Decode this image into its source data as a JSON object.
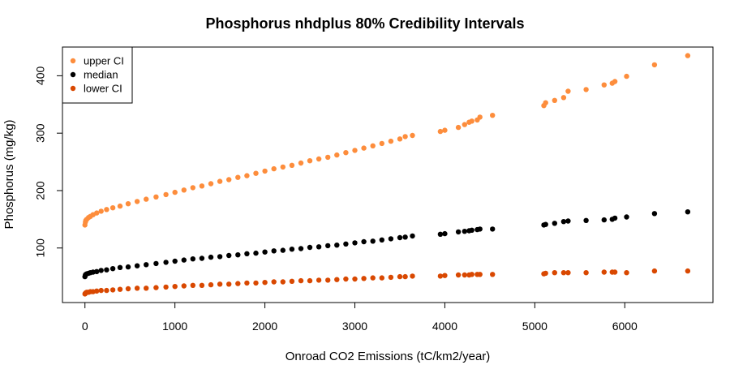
{
  "chart_data": {
    "type": "scatter",
    "title": "Phosphorus nhdplus 80% Credibility Intervals",
    "xlabel": "Onroad CO2 Emissions (tC/km2/year)",
    "ylabel": "Phosphorus (mg/kg)",
    "xlim": [
      -250,
      6980
    ],
    "ylim": [
      5,
      450
    ],
    "xticks": [
      0,
      1000,
      2000,
      3000,
      4000,
      5000,
      6000
    ],
    "yticks": [
      100,
      200,
      300,
      400
    ],
    "grid": false,
    "legend_position": "top-left",
    "series": [
      {
        "name": "upper CI",
        "color": "#FD8D3C",
        "points": [
          [
            0,
            140
          ],
          [
            5,
            145
          ],
          [
            10,
            148
          ],
          [
            20,
            150
          ],
          [
            40,
            153
          ],
          [
            60,
            155
          ],
          [
            90,
            158
          ],
          [
            130,
            161
          ],
          [
            180,
            164
          ],
          [
            240,
            167
          ],
          [
            310,
            170
          ],
          [
            390,
            173
          ],
          [
            480,
            177
          ],
          [
            580,
            181
          ],
          [
            680,
            185
          ],
          [
            790,
            189
          ],
          [
            900,
            193
          ],
          [
            1000,
            197
          ],
          [
            1100,
            201
          ],
          [
            1200,
            205
          ],
          [
            1300,
            208
          ],
          [
            1400,
            212
          ],
          [
            1500,
            216
          ],
          [
            1600,
            219
          ],
          [
            1700,
            223
          ],
          [
            1800,
            226
          ],
          [
            1900,
            230
          ],
          [
            2000,
            234
          ],
          [
            2100,
            238
          ],
          [
            2200,
            241
          ],
          [
            2300,
            244
          ],
          [
            2400,
            248
          ],
          [
            2500,
            252
          ],
          [
            2600,
            255
          ],
          [
            2700,
            258
          ],
          [
            2800,
            262
          ],
          [
            2900,
            266
          ],
          [
            3000,
            270
          ],
          [
            3100,
            274
          ],
          [
            3200,
            278
          ],
          [
            3300,
            282
          ],
          [
            3400,
            286
          ],
          [
            3500,
            290
          ],
          [
            3560,
            294
          ],
          [
            3640,
            296
          ],
          [
            3950,
            303
          ],
          [
            4000,
            305
          ],
          [
            4150,
            310
          ],
          [
            4220,
            315
          ],
          [
            4270,
            319
          ],
          [
            4300,
            321
          ],
          [
            4360,
            323
          ],
          [
            4390,
            328
          ],
          [
            4530,
            331
          ],
          [
            5100,
            348
          ],
          [
            5120,
            353
          ],
          [
            5220,
            357
          ],
          [
            5320,
            362
          ],
          [
            5370,
            373
          ],
          [
            5570,
            376
          ],
          [
            5770,
            384
          ],
          [
            5860,
            387
          ],
          [
            5890,
            390
          ],
          [
            6020,
            399
          ],
          [
            6330,
            419
          ],
          [
            6700,
            435
          ]
        ]
      },
      {
        "name": "median",
        "color": "#000000",
        "points": [
          [
            0,
            50
          ],
          [
            5,
            53
          ],
          [
            10,
            54
          ],
          [
            20,
            55
          ],
          [
            40,
            56
          ],
          [
            60,
            57
          ],
          [
            90,
            58
          ],
          [
            130,
            59
          ],
          [
            180,
            61
          ],
          [
            240,
            62
          ],
          [
            310,
            64
          ],
          [
            390,
            66
          ],
          [
            480,
            67
          ],
          [
            580,
            69
          ],
          [
            680,
            71
          ],
          [
            790,
            73
          ],
          [
            900,
            75
          ],
          [
            1000,
            77
          ],
          [
            1100,
            79
          ],
          [
            1200,
            81
          ],
          [
            1300,
            82
          ],
          [
            1400,
            84
          ],
          [
            1500,
            85
          ],
          [
            1600,
            87
          ],
          [
            1700,
            88
          ],
          [
            1800,
            90
          ],
          [
            1900,
            91
          ],
          [
            2000,
            93
          ],
          [
            2100,
            95
          ],
          [
            2200,
            96
          ],
          [
            2300,
            98
          ],
          [
            2400,
            99
          ],
          [
            2500,
            101
          ],
          [
            2600,
            102
          ],
          [
            2700,
            104
          ],
          [
            2800,
            105
          ],
          [
            2900,
            107
          ],
          [
            3000,
            109
          ],
          [
            3100,
            111
          ],
          [
            3200,
            112
          ],
          [
            3300,
            114
          ],
          [
            3400,
            116
          ],
          [
            3500,
            118
          ],
          [
            3560,
            119
          ],
          [
            3640,
            121
          ],
          [
            3950,
            124
          ],
          [
            4000,
            125
          ],
          [
            4150,
            128
          ],
          [
            4220,
            129
          ],
          [
            4270,
            130
          ],
          [
            4300,
            131
          ],
          [
            4360,
            132
          ],
          [
            4390,
            133
          ],
          [
            4530,
            133
          ],
          [
            5100,
            140
          ],
          [
            5120,
            141
          ],
          [
            5220,
            143
          ],
          [
            5320,
            146
          ],
          [
            5370,
            147
          ],
          [
            5570,
            148
          ],
          [
            5770,
            149
          ],
          [
            5860,
            150
          ],
          [
            5890,
            152
          ],
          [
            6020,
            154
          ],
          [
            6330,
            160
          ],
          [
            6700,
            163
          ]
        ]
      },
      {
        "name": "lower CI",
        "color": "#D94801",
        "points": [
          [
            0,
            20
          ],
          [
            5,
            21
          ],
          [
            10,
            22
          ],
          [
            20,
            23
          ],
          [
            40,
            23
          ],
          [
            60,
            24
          ],
          [
            90,
            24
          ],
          [
            130,
            25
          ],
          [
            180,
            26
          ],
          [
            240,
            26
          ],
          [
            310,
            27
          ],
          [
            390,
            28
          ],
          [
            480,
            29
          ],
          [
            580,
            30
          ],
          [
            680,
            30
          ],
          [
            790,
            31
          ],
          [
            900,
            32
          ],
          [
            1000,
            33
          ],
          [
            1100,
            34
          ],
          [
            1200,
            35
          ],
          [
            1300,
            35
          ],
          [
            1400,
            36
          ],
          [
            1500,
            37
          ],
          [
            1600,
            37
          ],
          [
            1700,
            38
          ],
          [
            1800,
            39
          ],
          [
            1900,
            39
          ],
          [
            2000,
            40
          ],
          [
            2100,
            41
          ],
          [
            2200,
            41
          ],
          [
            2300,
            42
          ],
          [
            2400,
            43
          ],
          [
            2500,
            43
          ],
          [
            2600,
            44
          ],
          [
            2700,
            44
          ],
          [
            2800,
            45
          ],
          [
            2900,
            46
          ],
          [
            3000,
            46
          ],
          [
            3100,
            47
          ],
          [
            3200,
            48
          ],
          [
            3300,
            48
          ],
          [
            3400,
            49
          ],
          [
            3500,
            50
          ],
          [
            3560,
            50
          ],
          [
            3640,
            51
          ],
          [
            3950,
            51
          ],
          [
            4000,
            52
          ],
          [
            4150,
            53
          ],
          [
            4220,
            53
          ],
          [
            4270,
            53
          ],
          [
            4300,
            54
          ],
          [
            4360,
            54
          ],
          [
            4390,
            54
          ],
          [
            4530,
            54
          ],
          [
            5100,
            55
          ],
          [
            5120,
            56
          ],
          [
            5220,
            57
          ],
          [
            5320,
            57
          ],
          [
            5370,
            57
          ],
          [
            5570,
            57
          ],
          [
            5770,
            58
          ],
          [
            5860,
            58
          ],
          [
            5890,
            58
          ],
          [
            6020,
            57
          ],
          [
            6330,
            60
          ],
          [
            6700,
            60
          ]
        ]
      }
    ]
  }
}
